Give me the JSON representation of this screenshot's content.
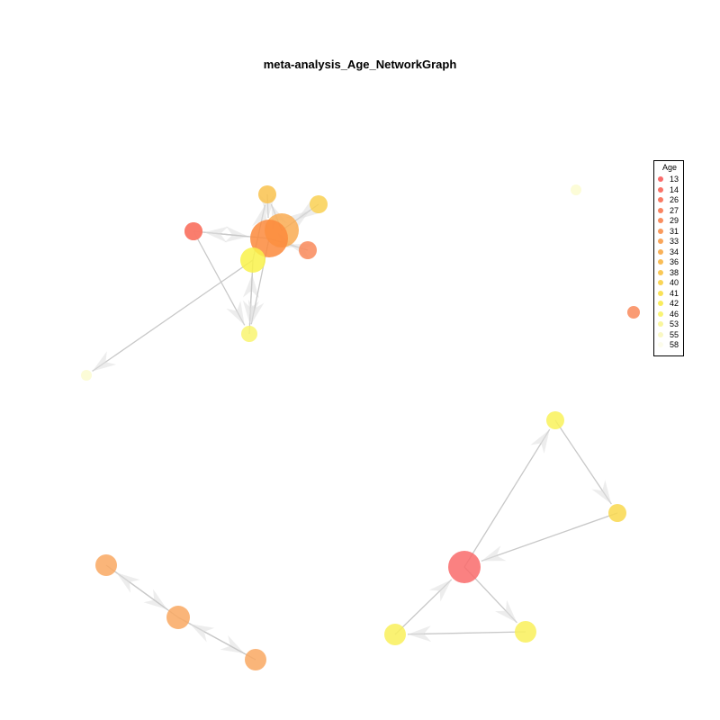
{
  "title": "meta-analysis_Age_NetworkGraph",
  "legend": {
    "title": "Age",
    "items": [
      {
        "label": "13",
        "color": "#f96b6b"
      },
      {
        "label": "14",
        "color": "#f97368"
      },
      {
        "label": "26",
        "color": "#f97a64"
      },
      {
        "label": "27",
        "color": "#f98461"
      },
      {
        "label": "29",
        "color": "#f98e5f"
      },
      {
        "label": "31",
        "color": "#f99a5c"
      },
      {
        "label": "33",
        "color": "#f9a65a"
      },
      {
        "label": "34",
        "color": "#f9b158"
      },
      {
        "label": "36",
        "color": "#f9bd56"
      },
      {
        "label": "38",
        "color": "#f9c856"
      },
      {
        "label": "40",
        "color": "#f9d556"
      },
      {
        "label": "41",
        "color": "#f9e157"
      },
      {
        "label": "42",
        "color": "#f9ec5c"
      },
      {
        "label": "46",
        "color": "#f9f474"
      },
      {
        "label": "53",
        "color": "#f9f69c"
      },
      {
        "label": "55",
        "color": "#f9f8c4"
      },
      {
        "label": "58",
        "color": "#fcfcec"
      }
    ]
  },
  "network": {
    "nodes": [
      {
        "id": "a",
        "color": "#f97a6a"
      },
      {
        "id": "b",
        "color": "#f9c24e"
      },
      {
        "id": "c",
        "color": "#f9d052"
      },
      {
        "id": "d",
        "color": "#f9ac52"
      },
      {
        "id": "e",
        "color": "#fb8a3c"
      },
      {
        "id": "f",
        "color": "#f97a6a"
      },
      {
        "id": "g",
        "color": "#f98a5a"
      },
      {
        "id": "h",
        "color": "#f9f24a"
      },
      {
        "id": "i",
        "color": "#f9f470"
      },
      {
        "id": "j",
        "color": "#fbfbd0"
      },
      {
        "id": "k",
        "color": "#fbfbd0"
      },
      {
        "id": "l",
        "color": "#f98a5a"
      },
      {
        "id": "m",
        "color": "#f9f25a"
      },
      {
        "id": "n",
        "color": "#f9d84e"
      },
      {
        "id": "o",
        "color": "#f96b6b"
      },
      {
        "id": "p",
        "color": "#f9f05a"
      },
      {
        "id": "q",
        "color": "#f9f05a"
      },
      {
        "id": "r",
        "color": "#f9a862"
      },
      {
        "id": "s",
        "color": "#f9a862"
      },
      {
        "id": "t",
        "color": "#f9a862"
      }
    ],
    "edges": [
      [
        "f",
        "e"
      ],
      [
        "e",
        "f"
      ],
      [
        "b",
        "e"
      ],
      [
        "c",
        "d"
      ],
      [
        "e",
        "g"
      ],
      [
        "g",
        "e"
      ],
      [
        "f",
        "i"
      ],
      [
        "i",
        "h"
      ],
      [
        "h",
        "i"
      ],
      [
        "h",
        "b"
      ],
      [
        "h",
        "k"
      ],
      [
        "e",
        "i"
      ],
      [
        "d",
        "c"
      ],
      [
        "d",
        "b"
      ],
      [
        "o",
        "m"
      ],
      [
        "m",
        "n"
      ],
      [
        "n",
        "o"
      ],
      [
        "o",
        "q"
      ],
      [
        "q",
        "p"
      ],
      [
        "p",
        "o"
      ],
      [
        "r",
        "s"
      ],
      [
        "s",
        "r"
      ],
      [
        "s",
        "t"
      ],
      [
        "t",
        "s"
      ]
    ]
  }
}
